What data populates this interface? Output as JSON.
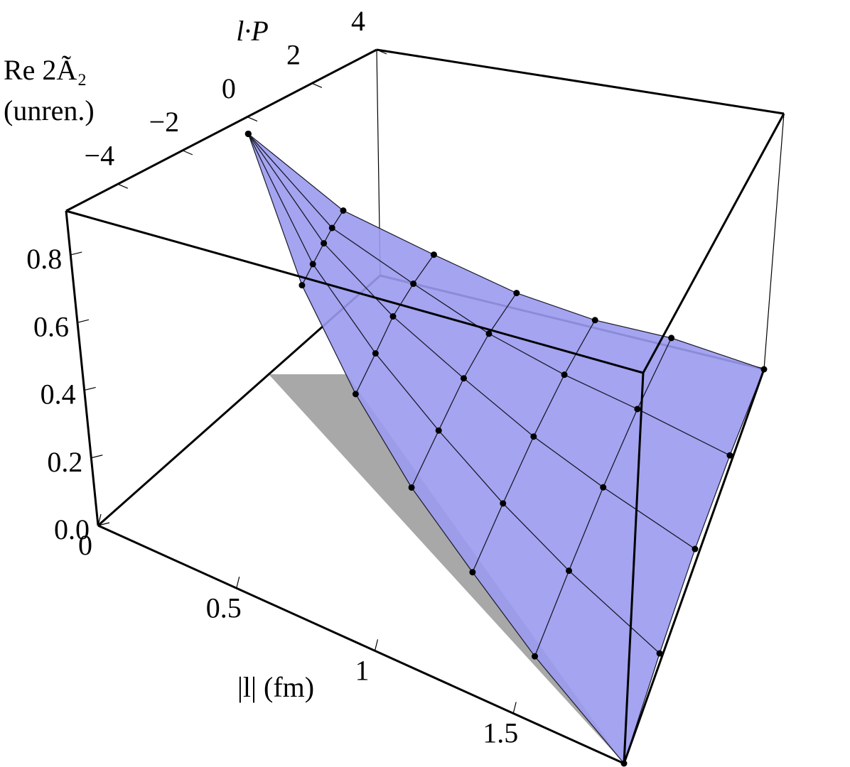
{
  "chart_data": {
    "type": "surface3d",
    "xlabel": "|l|  (fm)",
    "ylabel": "l·P",
    "zlabel_lines": [
      "Re 2Ã₂",
      "(unren.)"
    ],
    "xlim": [
      0,
      1.9
    ],
    "xticks": [
      0,
      0.5,
      1,
      1.5
    ],
    "ylim": [
      -5.6,
      4
    ],
    "yticks": [
      {
        "value": -4,
        "label": "−4"
      },
      {
        "value": -2,
        "label": "−2"
      },
      0,
      2,
      4
    ],
    "zlim": [
      0,
      0.93
    ],
    "zticks": [
      {
        "value": 0,
        "label": "0.0"
      },
      0.2,
      0.4,
      0.6,
      0.8
    ],
    "color": "#9a9af0",
    "marker_color": "#000000",
    "surface": {
      "x": [
        0,
        0.3,
        0.6,
        0.9,
        1.2,
        1.5,
        1.9
      ],
      "lP": [
        [
          0,
          0,
          0,
          0,
          0
        ],
        [
          -0.9,
          -0.5,
          -0.1,
          0.2,
          0.6
        ],
        [
          -1.8,
          -1.0,
          -0.3,
          0.5,
          1.3
        ],
        [
          -2.7,
          -1.5,
          -0.4,
          0.7,
          1.9
        ],
        [
          -3.5,
          -2.0,
          -0.5,
          1.0,
          2.5
        ],
        [
          -4.4,
          -2.5,
          -0.6,
          1.3,
          3.2
        ],
        [
          -5.6,
          -3.2,
          -0.8,
          1.6,
          4.0
        ]
      ],
      "z": [
        [
          0.87,
          0.87,
          0.87,
          0.87,
          0.87
        ],
        [
          0.48,
          0.52,
          0.56,
          0.59,
          0.62
        ],
        [
          0.28,
          0.34,
          0.4,
          0.44,
          0.47
        ],
        [
          0.16,
          0.22,
          0.28,
          0.32,
          0.34
        ],
        [
          0.08,
          0.13,
          0.18,
          0.22,
          0.24
        ],
        [
          0.03,
          0.07,
          0.11,
          0.14,
          0.15
        ],
        [
          0.0,
          0.03,
          0.05,
          0.04,
          0.0
        ]
      ]
    }
  }
}
